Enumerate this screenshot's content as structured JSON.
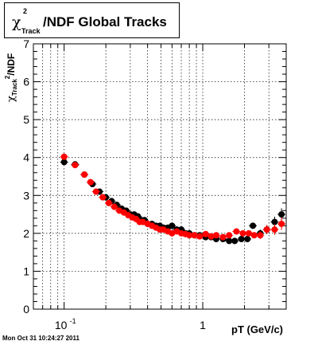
{
  "chart_data": {
    "type": "scatter",
    "title_parts": {
      "chi": "χ",
      "sup": "2",
      "sub": "Track",
      "rest": "/NDF  Global Tracks"
    },
    "xlabel": "pT (GeV/c)",
    "ylabel_parts": {
      "chi": "χ",
      "sub": "Track",
      "sup": "2",
      "rest": "/NDF"
    },
    "x_scale": "log",
    "xlim": [
      0.06,
      4.0
    ],
    "ylim": [
      0,
      7
    ],
    "y_ticks": [
      0,
      1,
      2,
      3,
      4,
      5,
      6,
      7
    ],
    "y_tick_labels": [
      "0",
      "1",
      "2",
      "3",
      "4",
      "5",
      "6",
      "7"
    ],
    "x_tick_labels": [
      {
        "x": 0.1,
        "base": "10",
        "exp": "-1"
      },
      {
        "x": 1,
        "base": "1",
        "exp": ""
      }
    ],
    "grid": true,
    "series": [
      {
        "color": "#000000",
        "x": [
          0.1,
          0.12,
          0.14,
          0.16,
          0.18,
          0.2,
          0.22,
          0.24,
          0.26,
          0.28,
          0.3,
          0.32,
          0.34,
          0.36,
          0.38,
          0.4,
          0.43,
          0.46,
          0.49,
          0.52,
          0.56,
          0.6,
          0.65,
          0.7,
          0.75,
          0.8,
          0.87,
          0.95,
          1.05,
          1.15,
          1.25,
          1.4,
          1.55,
          1.7,
          1.9,
          2.1,
          2.3,
          2.6,
          2.9,
          3.3,
          3.7
        ],
        "y": [
          3.88,
          3.82,
          3.55,
          3.3,
          3.1,
          2.95,
          2.85,
          2.75,
          2.65,
          2.6,
          2.5,
          2.5,
          2.45,
          2.35,
          2.35,
          2.25,
          2.25,
          2.2,
          2.2,
          2.15,
          2.15,
          2.2,
          2.1,
          2.1,
          2.0,
          2.0,
          1.95,
          1.95,
          1.9,
          1.9,
          1.85,
          1.85,
          1.8,
          1.8,
          1.85,
          1.85,
          2.2,
          2.0,
          2.1,
          2.3,
          2.5
        ],
        "yerr": [
          0.05,
          0.04,
          0.03,
          0.03,
          0.03,
          0.02,
          0.02,
          0.02,
          0.02,
          0.02,
          0.02,
          0.02,
          0.02,
          0.02,
          0.02,
          0.02,
          0.02,
          0.02,
          0.02,
          0.02,
          0.02,
          0.02,
          0.02,
          0.02,
          0.02,
          0.02,
          0.03,
          0.03,
          0.03,
          0.03,
          0.04,
          0.04,
          0.05,
          0.05,
          0.06,
          0.07,
          0.08,
          0.1,
          0.12,
          0.14,
          0.16
        ]
      },
      {
        "color": "#ff0000",
        "x": [
          0.1,
          0.12,
          0.14,
          0.155,
          0.17,
          0.19,
          0.21,
          0.23,
          0.25,
          0.27,
          0.29,
          0.31,
          0.33,
          0.35,
          0.37,
          0.4,
          0.43,
          0.46,
          0.49,
          0.52,
          0.56,
          0.6,
          0.65,
          0.7,
          0.75,
          0.8,
          0.87,
          0.95,
          1.05,
          1.15,
          1.25,
          1.4,
          1.55,
          1.75,
          1.95,
          2.15,
          2.35,
          2.6,
          2.9,
          3.3,
          3.7
        ],
        "y": [
          4.02,
          3.8,
          3.55,
          3.35,
          3.1,
          2.95,
          2.8,
          2.7,
          2.6,
          2.55,
          2.48,
          2.42,
          2.38,
          2.3,
          2.3,
          2.25,
          2.2,
          2.15,
          2.1,
          2.1,
          2.05,
          2.0,
          2.05,
          2.0,
          1.98,
          1.95,
          1.95,
          1.92,
          1.98,
          1.92,
          1.95,
          1.9,
          1.95,
          2.05,
          2.0,
          2.0,
          1.95,
          1.95,
          2.1,
          2.1,
          2.25
        ],
        "yerr": [
          0.05,
          0.04,
          0.03,
          0.03,
          0.03,
          0.02,
          0.02,
          0.02,
          0.02,
          0.02,
          0.02,
          0.02,
          0.02,
          0.02,
          0.02,
          0.02,
          0.02,
          0.02,
          0.02,
          0.02,
          0.02,
          0.02,
          0.02,
          0.02,
          0.02,
          0.02,
          0.03,
          0.03,
          0.03,
          0.03,
          0.04,
          0.04,
          0.05,
          0.05,
          0.06,
          0.07,
          0.08,
          0.1,
          0.12,
          0.14,
          0.16
        ]
      }
    ]
  },
  "timestamp": "Mon Oct 31 10:24:27 2011"
}
